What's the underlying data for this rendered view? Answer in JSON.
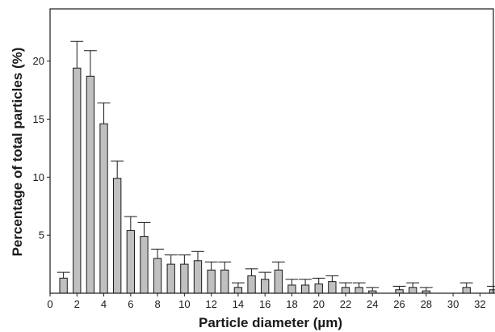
{
  "chart_data": {
    "type": "bar",
    "title": "",
    "xlabel": "Particle diameter (µm)",
    "ylabel": "Percentage of total particles (%)",
    "xlim": [
      0,
      33
    ],
    "ylim": [
      0,
      24.5
    ],
    "x_ticks": [
      0,
      2,
      4,
      6,
      8,
      10,
      12,
      14,
      16,
      18,
      20,
      22,
      24,
      26,
      28,
      30,
      32
    ],
    "y_ticks": [
      5,
      10,
      15,
      20
    ],
    "grid": false,
    "legend": "none",
    "bar_color": "#c0c0c0",
    "x": [
      1,
      2,
      3,
      4,
      5,
      6,
      7,
      8,
      9,
      10,
      11,
      12,
      13,
      14,
      15,
      16,
      17,
      18,
      19,
      20,
      21,
      22,
      23,
      24,
      26,
      27,
      28,
      31,
      33
    ],
    "values": [
      1.3,
      19.4,
      18.7,
      14.6,
      9.9,
      5.4,
      4.9,
      3.0,
      2.5,
      2.5,
      2.8,
      2.0,
      2.0,
      0.5,
      1.5,
      1.2,
      2.0,
      0.7,
      0.7,
      0.8,
      1.0,
      0.5,
      0.5,
      0.2,
      0.3,
      0.5,
      0.2,
      0.5,
      0.3
    ],
    "errors": [
      0.5,
      2.3,
      2.2,
      1.8,
      1.5,
      1.2,
      1.2,
      0.8,
      0.8,
      0.8,
      0.8,
      0.7,
      0.7,
      0.4,
      0.6,
      0.6,
      0.7,
      0.5,
      0.5,
      0.5,
      0.5,
      0.4,
      0.4,
      0.3,
      0.3,
      0.4,
      0.3,
      0.4,
      0.3
    ]
  }
}
